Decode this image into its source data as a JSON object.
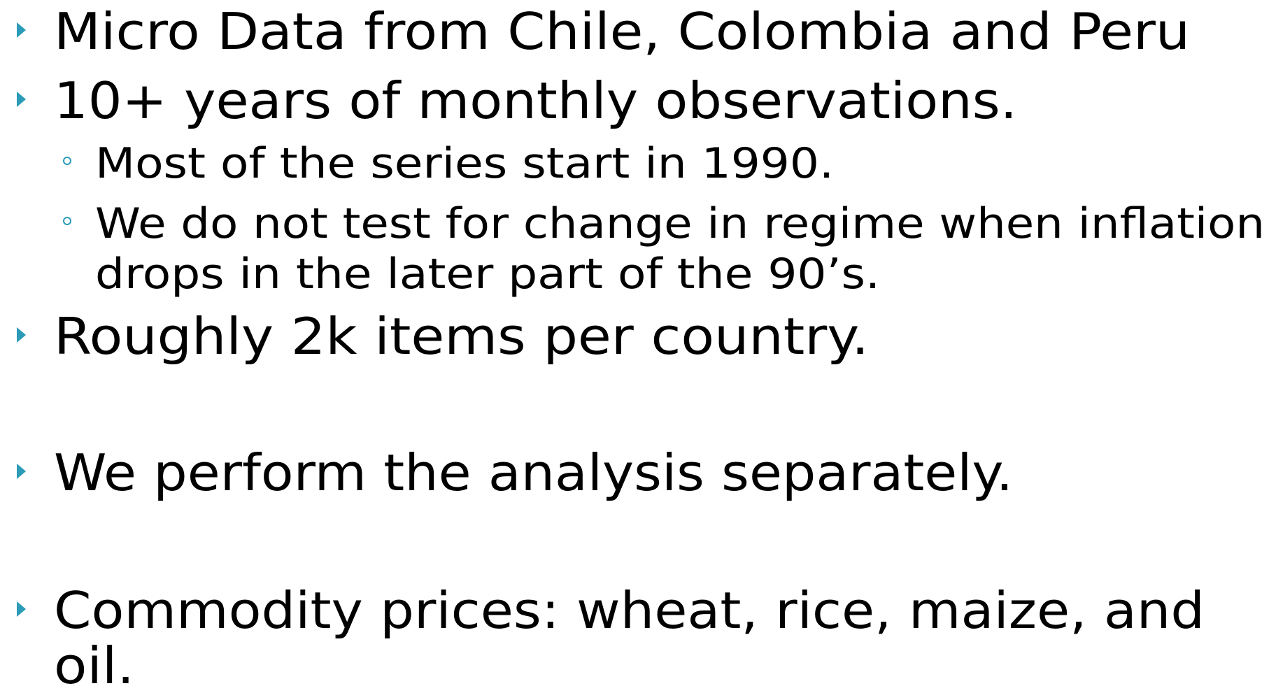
{
  "slide": {
    "bullets": [
      {
        "lines": [
          "Micro Data from Chile, Colombia and Peru"
        ]
      },
      {
        "lines": [
          "10+ years of monthly observations."
        ],
        "sub": [
          {
            "lines": [
              "Most of the series start in 1990."
            ]
          },
          {
            "lines": [
              "We do not test for change in regime when inflation",
              "drops in the later part of the 90’s."
            ]
          }
        ]
      },
      {
        "lines": [
          "Roughly 2k items per country."
        ]
      },
      {
        "lines": [
          "We perform the analysis separately."
        ]
      },
      {
        "lines": [
          "Commodity prices: wheat, rice, maize, and",
          "oil."
        ]
      }
    ]
  }
}
